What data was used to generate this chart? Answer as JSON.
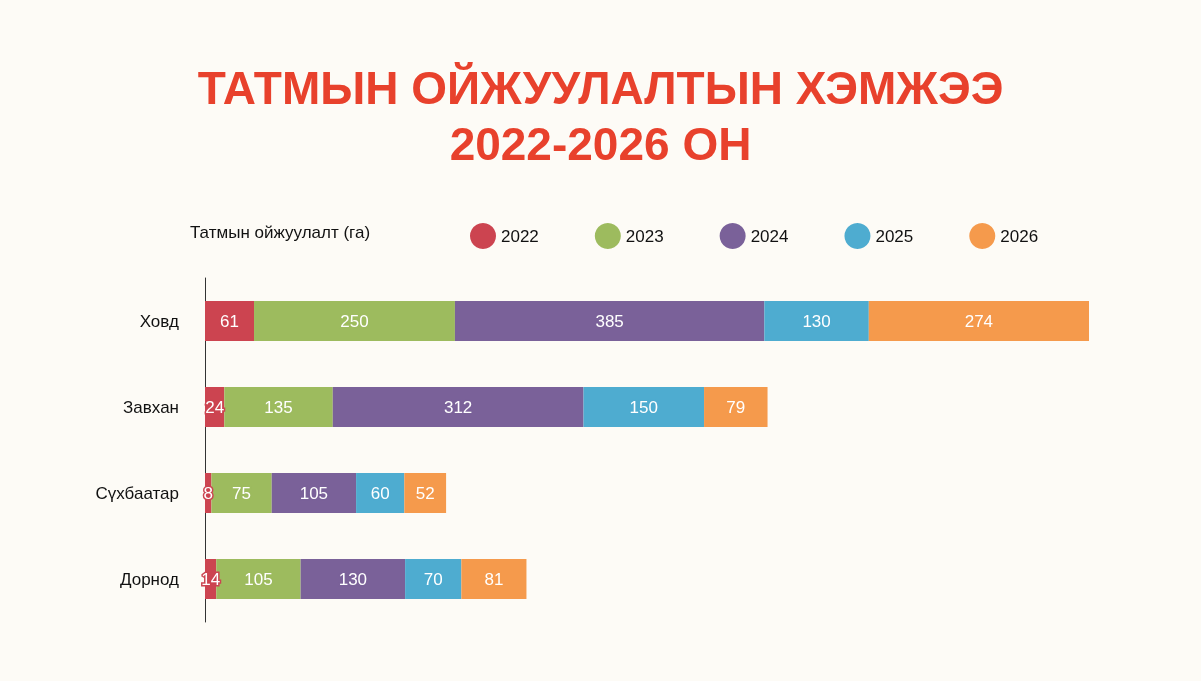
{
  "chart_data": {
    "type": "bar",
    "orientation": "horizontal",
    "stacked": true,
    "title": "ТАТМЫН ОЙЖУУЛАЛТЫН ХЭМЖЭЭ\n2022-2026 ОН",
    "legend_title": "Татмын ойжуулалт (га)",
    "legend": "top",
    "data_labels": true,
    "categories": [
      "Ховд",
      "Завхан",
      "Сүхбаатар",
      "Дорнод"
    ],
    "series": [
      {
        "name": "2022",
        "color": "#cc4450",
        "values": [
          61,
          24,
          8,
          14
        ]
      },
      {
        "name": "2023",
        "color": "#9dbb5e",
        "values": [
          250,
          135,
          75,
          105
        ]
      },
      {
        "name": "2024",
        "color": "#7a6199",
        "values": [
          385,
          312,
          105,
          130
        ]
      },
      {
        "name": "2025",
        "color": "#4eacd0",
        "values": [
          130,
          150,
          60,
          70
        ]
      },
      {
        "name": "2026",
        "color": "#f59a4c",
        "values": [
          274,
          79,
          52,
          81
        ]
      }
    ]
  }
}
